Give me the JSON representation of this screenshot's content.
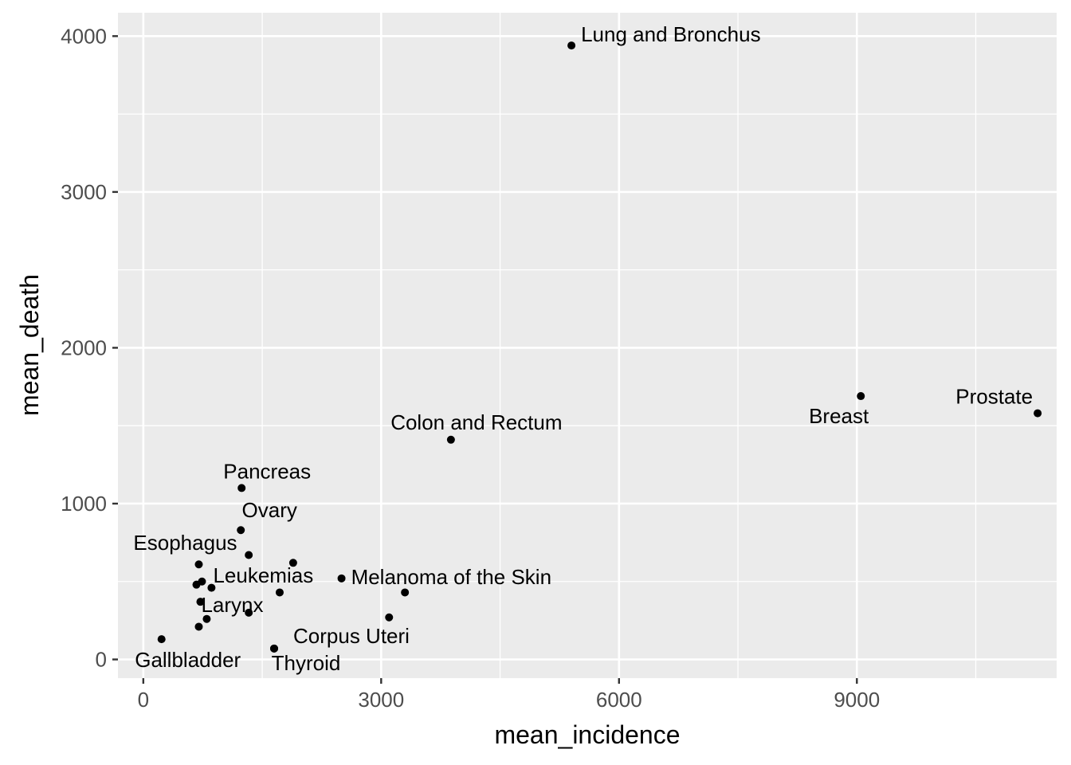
{
  "chart_data": {
    "type": "scatter",
    "title": "",
    "xlabel": "mean_incidence",
    "ylabel": "mean_death",
    "xlim": [
      -320,
      11520
    ],
    "ylim": [
      -120,
      4150
    ],
    "x_ticks": [
      0,
      3000,
      6000,
      9000
    ],
    "x_tick_labels": [
      "0",
      "3000",
      "6000",
      "9000"
    ],
    "y_ticks": [
      0,
      1000,
      2000,
      3000,
      4000
    ],
    "y_tick_labels": [
      "0",
      "1000",
      "2000",
      "3000",
      "4000"
    ],
    "grid": true,
    "background_color": "#ebebeb",
    "grid_color": "#ffffff",
    "point_color": "#000000",
    "points": [
      {
        "x": 5400,
        "y": 3940,
        "label": "Lung and Bronchus",
        "anchor": "start",
        "dx": 12,
        "dy": -5
      },
      {
        "x": 9050,
        "y": 1690,
        "label": "Breast",
        "anchor": "end",
        "dx": 10,
        "dy": 34
      },
      {
        "x": 11280,
        "y": 1580,
        "label": "Prostate",
        "anchor": "end",
        "dx": -6,
        "dy": -12
      },
      {
        "x": 3880,
        "y": 1410,
        "label": "Colon and Rectum",
        "anchor": "middle",
        "dx": 32,
        "dy": -13
      },
      {
        "x": 1240,
        "y": 1100,
        "label": "Pancreas",
        "anchor": "middle",
        "dx": 32,
        "dy": -12
      },
      {
        "x": 1230,
        "y": 830,
        "label": "Ovary",
        "anchor": "middle",
        "dx": 36,
        "dy": -16
      },
      {
        "x": 1330,
        "y": 670,
        "label": "",
        "anchor": "start",
        "dx": 0,
        "dy": 0
      },
      {
        "x": 700,
        "y": 610,
        "label": "Esophagus",
        "anchor": "middle",
        "dx": -17,
        "dy": -18
      },
      {
        "x": 1890,
        "y": 620,
        "label": "",
        "anchor": "start",
        "dx": 0,
        "dy": 0
      },
      {
        "x": 2500,
        "y": 520,
        "label": "Melanoma of the Skin",
        "anchor": "start",
        "dx": 12,
        "dy": 7
      },
      {
        "x": 740,
        "y": 500,
        "label": "Leukemias",
        "anchor": "start",
        "dx": 14,
        "dy": 1
      },
      {
        "x": 670,
        "y": 480,
        "label": "",
        "anchor": "start",
        "dx": 0,
        "dy": 0
      },
      {
        "x": 860,
        "y": 460,
        "label": "",
        "anchor": "start",
        "dx": 0,
        "dy": 0
      },
      {
        "x": 1720,
        "y": 430,
        "label": "",
        "anchor": "start",
        "dx": 0,
        "dy": 0
      },
      {
        "x": 3300,
        "y": 430,
        "label": "",
        "anchor": "start",
        "dx": 0,
        "dy": 0
      },
      {
        "x": 720,
        "y": 370,
        "label": "Larynx",
        "anchor": "middle",
        "dx": 40,
        "dy": 13
      },
      {
        "x": 1330,
        "y": 300,
        "label": "",
        "anchor": "start",
        "dx": 0,
        "dy": 0
      },
      {
        "x": 800,
        "y": 260,
        "label": "",
        "anchor": "start",
        "dx": 0,
        "dy": 0
      },
      {
        "x": 3100,
        "y": 270,
        "label": "",
        "anchor": "start",
        "dx": 0,
        "dy": 0
      },
      {
        "x": 700,
        "y": 210,
        "label": "",
        "anchor": "start",
        "dx": 0,
        "dy": 0
      },
      {
        "x": 230,
        "y": 130,
        "label": "Gallbladder",
        "anchor": "middle",
        "dx": 33,
        "dy": 35
      },
      {
        "x": 1650,
        "y": 70,
        "label": "Corpus Uteri",
        "anchor": "start",
        "dx": 24,
        "dy": -7
      },
      {
        "x": 1650,
        "y": 70,
        "label": "Thyroid",
        "anchor": "middle",
        "dx": 40,
        "dy": 27
      }
    ]
  }
}
